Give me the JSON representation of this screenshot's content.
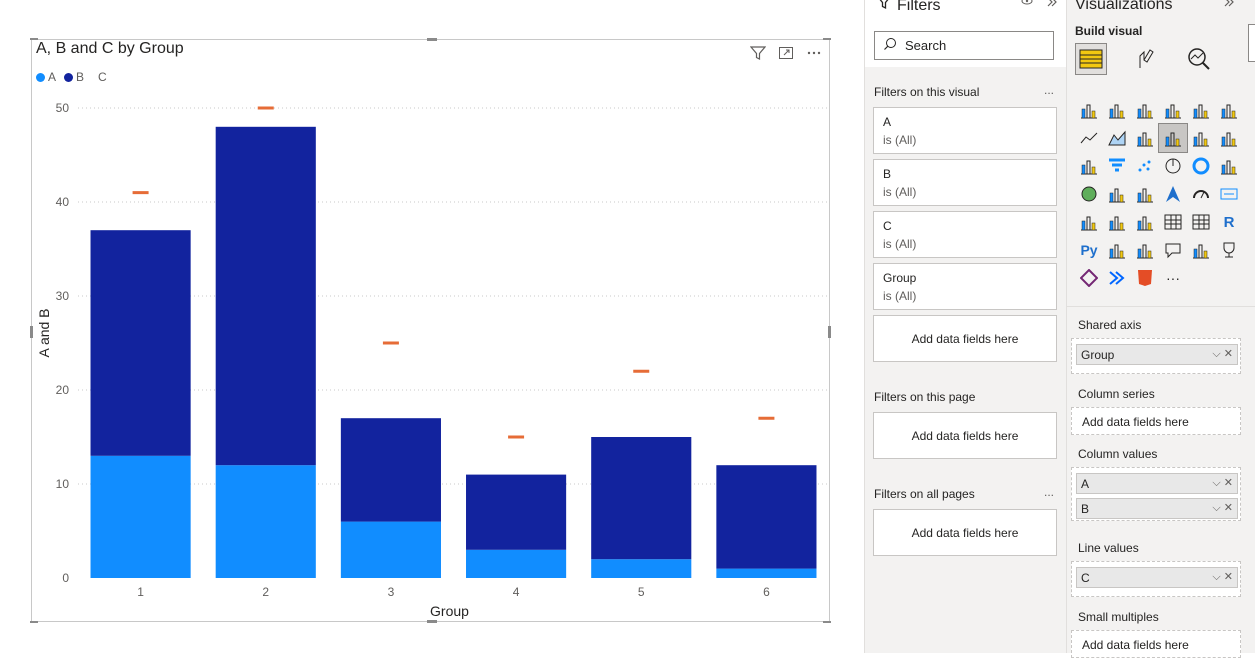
{
  "visual": {
    "title": "A, B and C by Group",
    "legend": [
      {
        "label": "A",
        "color": "#118DFF"
      },
      {
        "label": "B",
        "color": "#12239E"
      },
      {
        "label": "C",
        "color": "#E66C37"
      }
    ],
    "header_icons": [
      "filter-icon",
      "focus-mode-icon",
      "more-options-icon"
    ]
  },
  "chart_data": {
    "type": "bar",
    "stacked": true,
    "categories": [
      "1",
      "2",
      "3",
      "4",
      "5",
      "6"
    ],
    "series": [
      {
        "name": "A",
        "type": "bar",
        "color": "#118DFF",
        "values": [
          13,
          12,
          6,
          3,
          2,
          1
        ]
      },
      {
        "name": "B",
        "type": "bar",
        "color": "#12239E",
        "values": [
          24,
          36,
          11,
          8,
          13,
          11
        ]
      },
      {
        "name": "C",
        "type": "line-marker",
        "color": "#E66C37",
        "values": [
          41,
          50,
          25,
          15,
          22,
          17
        ]
      }
    ],
    "xlabel": "Group",
    "ylabel": "A and B",
    "ylim": [
      0,
      50
    ],
    "yticks": [
      0,
      10,
      20,
      30,
      40,
      50
    ],
    "grid": true,
    "legend_position": "top-left"
  },
  "filters": {
    "title": "Filters",
    "search_placeholder": "Search",
    "on_visual_label": "Filters on this visual",
    "visual_filters": [
      {
        "name": "A",
        "value": "is (All)"
      },
      {
        "name": "B",
        "value": "is (All)"
      },
      {
        "name": "C",
        "value": "is (All)"
      },
      {
        "name": "Group",
        "value": "is (All)"
      }
    ],
    "add_fields": "Add data fields here",
    "on_page_label": "Filters on this page",
    "all_pages_label": "Filters on all pages",
    "more": "..."
  },
  "visualizations": {
    "title": "Visualizations",
    "build_label": "Build visual",
    "more": "···",
    "shared_axis_label": "Shared axis",
    "shared_axis_field": "Group",
    "column_series_label": "Column series",
    "column_values_label": "Column values",
    "column_values_fields": [
      "A",
      "B"
    ],
    "line_values_label": "Line values",
    "line_values_field": "C",
    "small_multiples_label": "Small multiples",
    "add_fields": "Add data fields here"
  }
}
